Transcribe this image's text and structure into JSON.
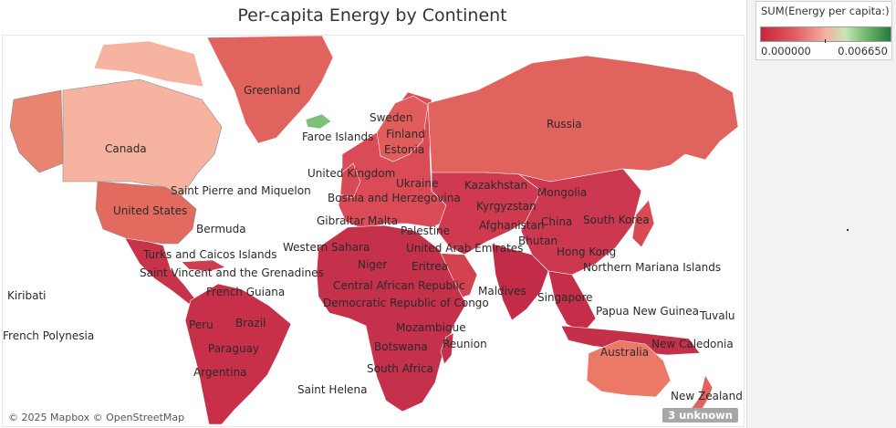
{
  "title": "Per-capita Energy by Continent",
  "legend": {
    "title": "SUM(Energy per capita:)",
    "min_label": "0.000000",
    "max_label": "0.006650",
    "colors": {
      "low": "#c7243e",
      "mid": "#f4b0a4",
      "high": "#237a3f"
    }
  },
  "map": {
    "attribution": "© 2025 Mapbox © OpenStreetMap",
    "unknown_badge": "3 unknown",
    "labels": {
      "greenland": "Greenland",
      "sweden": "Sweden",
      "faroe": "Faroe Islands",
      "finland": "Finland",
      "estonia": "Estonia",
      "russia": "Russia",
      "canada": "Canada",
      "uk": "United Kingdom",
      "ukraine": "Ukraine",
      "kazakhstan": "Kazakhstan",
      "mongolia": "Mongolia",
      "spm": "Saint Pierre and Miquelon",
      "bosnia": "Bosnia and Herzegovina",
      "us": "United States",
      "gibraltar": "Gibraltar",
      "malta": "Malta",
      "kyrgyzstan": "Kyrgyzstan",
      "china": "China",
      "south_korea": "South Korea",
      "bermuda": "Bermuda",
      "palestine": "Palestine",
      "afghanistan": "Afghanistan",
      "bhutan": "Bhutan",
      "western_sahara": "Western Sahara",
      "uae": "United Arab Emirates",
      "turks": "Turks and Caicos Islands",
      "hong_kong": "Hong Kong",
      "niger": "Niger",
      "eritrea": "Eritrea",
      "northern_mariana": "Northern Mariana Islands",
      "st_vincent": "Saint Vincent and the Grenadines",
      "car": "Central African Republic",
      "french_guiana": "French Guiana",
      "maldives": "Maldives",
      "singapore": "Singapore",
      "kiribati": "Kiribati",
      "drc": "Democratic Republic of Congo",
      "png": "Papua New Guinea",
      "tuvalu": "Tuvalu",
      "peru": "Peru",
      "brazil": "Brazil",
      "mozambique": "Mozambique",
      "french_polynesia": "French Polynesia",
      "reunion": "Reunion",
      "new_caledonia": "New Caledonia",
      "australia": "Australia",
      "paraguay": "Paraguay",
      "botswana": "Botswana",
      "south_africa": "South Africa",
      "argentina": "Argentina",
      "saint_helena": "Saint Helena",
      "new_zealand": "New Zealand"
    }
  }
}
